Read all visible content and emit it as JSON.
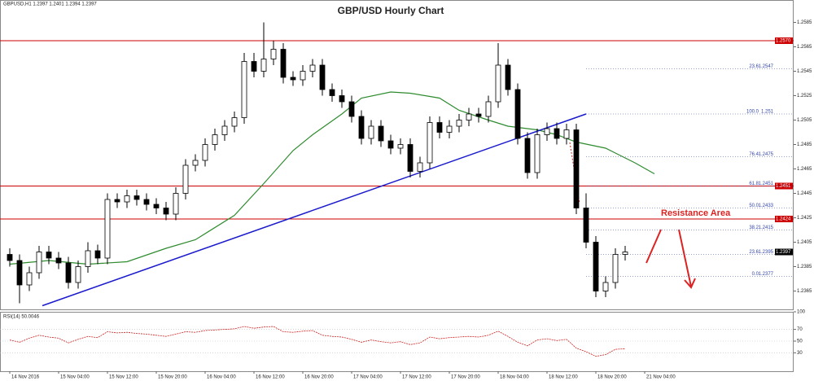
{
  "chart_data": {
    "type": "candlestick",
    "title": "GBP/USD Hourly Chart",
    "header_info": "GBPUSD,H1 1.2397 1.2401 1.2394 1.2397",
    "annotation": "Resistance Area",
    "xlim": [
      -1,
      80
    ],
    "ylim": [
      1.235,
      1.26
    ],
    "yticks": [
      1.2365,
      1.2385,
      1.2405,
      1.2425,
      1.2445,
      1.2465,
      1.2485,
      1.2505,
      1.2525,
      1.2545,
      1.2565,
      1.2585
    ],
    "xticks": [
      {
        "value": 0,
        "label": "14 Nov 2016"
      },
      {
        "value": 5,
        "label": "15 Nov 04:00"
      },
      {
        "value": 10,
        "label": "15 Nov 12:00"
      },
      {
        "value": 15,
        "label": "15 Nov 20:00"
      },
      {
        "value": 20,
        "label": "16 Nov 04:00"
      },
      {
        "value": 25,
        "label": "16 Nov 12:00"
      },
      {
        "value": 30,
        "label": "16 Nov 20:00"
      },
      {
        "value": 35,
        "label": "17 Nov 04:00"
      },
      {
        "value": 40,
        "label": "17 Nov 12:00"
      },
      {
        "value": 45,
        "label": "17 Nov 20:00"
      },
      {
        "value": 50,
        "label": "18 Nov 04:00"
      },
      {
        "value": 55,
        "label": "18 Nov 12:00"
      },
      {
        "value": 60,
        "label": "18 Nov 20:00"
      },
      {
        "value": 65,
        "label": "21 Nov 04:00"
      }
    ],
    "up_color": "#ffffff",
    "down_color": "#000000",
    "open": [
      1.2395,
      1.239,
      1.237,
      1.238,
      1.2397,
      1.2392,
      1.2388,
      1.2372,
      1.2385,
      1.2398,
      1.2392,
      1.244,
      1.2438,
      1.2443,
      1.244,
      1.2436,
      1.2433,
      1.2428,
      1.2445,
      1.2468,
      1.2472,
      1.2485,
      1.2493,
      1.25,
      1.2507,
      1.2553,
      1.2545,
      1.2555,
      1.2563,
      1.254,
      1.2538,
      1.2545,
      1.255,
      1.253,
      1.2525,
      1.252,
      1.2508,
      1.249,
      1.25,
      1.2488,
      1.2482,
      1.2485,
      1.2463,
      1.247,
      1.2503,
      1.2495,
      1.25,
      1.2505,
      1.251,
      1.2508,
      1.252,
      1.255,
      1.253,
      1.249,
      1.2462,
      1.2493,
      1.2498,
      1.249,
      1.2497,
      1.2433,
      1.2405,
      1.2365,
      1.2372,
      1.2395
    ],
    "high": [
      1.24,
      1.2395,
      1.2385,
      1.2402,
      1.2402,
      1.2397,
      1.2393,
      1.239,
      1.2405,
      1.2403,
      1.2445,
      1.2445,
      1.2448,
      1.2448,
      1.2445,
      1.2441,
      1.2438,
      1.245,
      1.2473,
      1.2477,
      1.249,
      1.2498,
      1.2505,
      1.2512,
      1.256,
      1.256,
      1.2585,
      1.257,
      1.2568,
      1.2545,
      1.255,
      1.2555,
      1.2555,
      1.2535,
      1.253,
      1.2525,
      1.2513,
      1.2505,
      1.2505,
      1.2493,
      1.249,
      1.249,
      1.2475,
      1.2508,
      1.2508,
      1.2505,
      1.251,
      1.2515,
      1.2515,
      1.2525,
      1.2568,
      1.2555,
      1.2535,
      1.2495,
      1.2498,
      1.2503,
      1.2503,
      1.2502,
      1.2502,
      1.2445,
      1.241,
      1.2377,
      1.24,
      1.2402
    ],
    "low": [
      1.2385,
      1.2355,
      1.2365,
      1.2375,
      1.2387,
      1.2383,
      1.2367,
      1.2367,
      1.238,
      1.2387,
      1.2387,
      1.2433,
      1.2433,
      1.2435,
      1.2431,
      1.2428,
      1.2423,
      1.2423,
      1.244,
      1.2463,
      1.2467,
      1.248,
      1.2488,
      1.2495,
      1.2502,
      1.254,
      1.254,
      1.255,
      1.2535,
      1.2533,
      1.2533,
      1.254,
      1.2525,
      1.252,
      1.2515,
      1.2503,
      1.2485,
      1.2485,
      1.2483,
      1.2477,
      1.2477,
      1.2458,
      1.2458,
      1.2465,
      1.249,
      1.249,
      1.2495,
      1.25,
      1.2503,
      1.2503,
      1.2515,
      1.2525,
      1.2485,
      1.2457,
      1.2457,
      1.2488,
      1.2485,
      1.2485,
      1.2428,
      1.24,
      1.236,
      1.236,
      1.2367,
      1.239
    ],
    "close": [
      1.239,
      1.237,
      1.238,
      1.2397,
      1.2392,
      1.2388,
      1.2372,
      1.2385,
      1.2398,
      1.2392,
      1.244,
      1.2438,
      1.2443,
      1.244,
      1.2436,
      1.2433,
      1.2428,
      1.2445,
      1.2468,
      1.2472,
      1.2485,
      1.2493,
      1.25,
      1.2507,
      1.2553,
      1.2545,
      1.2555,
      1.2563,
      1.254,
      1.2538,
      1.2545,
      1.255,
      1.253,
      1.2525,
      1.252,
      1.2508,
      1.249,
      1.25,
      1.2488,
      1.2482,
      1.2485,
      1.2463,
      1.247,
      1.2503,
      1.2495,
      1.25,
      1.2505,
      1.251,
      1.2508,
      1.252,
      1.255,
      1.253,
      1.249,
      1.2462,
      1.2493,
      1.2498,
      1.249,
      1.2497,
      1.2433,
      1.2405,
      1.2365,
      1.2372,
      1.2395,
      1.2397
    ],
    "last_price": 1.2397,
    "ma": {
      "color": "#2e8b2e",
      "x": [
        0,
        4,
        8,
        12,
        16,
        19,
        23,
        26,
        29,
        31,
        34,
        36,
        39,
        41,
        44,
        46,
        49,
        51,
        54,
        56,
        58,
        61,
        64,
        66
      ],
      "values": [
        1.2387,
        1.239,
        1.2387,
        1.2389,
        1.24,
        1.2407,
        1.2427,
        1.2453,
        1.248,
        1.2493,
        1.251,
        1.2523,
        1.2528,
        1.2527,
        1.2523,
        1.2513,
        1.2505,
        1.25,
        1.2497,
        1.2493,
        1.2487,
        1.2482,
        1.247,
        1.2461
      ]
    },
    "trendline": {
      "color": "#1a1acc",
      "x": [
        3.33,
        59
      ],
      "values": [
        1.2353,
        1.251
      ]
    },
    "hline_color": "#cc0000",
    "hlines": [
      {
        "value": 1.257,
        "label": "1.2570"
      },
      {
        "value": 1.2451,
        "label": "1.2451"
      },
      {
        "value": 1.2424,
        "label": "1.2424"
      }
    ],
    "fib_levels": [
      {
        "level": "23.6",
        "price": 1.2547
      },
      {
        "level": "100.0",
        "price": 1.251
      },
      {
        "level": "76.4",
        "price": 1.2475
      },
      {
        "level": "61.8",
        "price": 1.2451
      },
      {
        "level": "50.0",
        "price": 1.2433
      },
      {
        "level": "38.2",
        "price": 1.2415
      },
      {
        "level": "23.6",
        "price": 1.2395
      },
      {
        "level": "0.0",
        "price": 1.2377
      }
    ],
    "rsi": {
      "label": "RSI(14) 50.0046",
      "color": "#cc2222",
      "ylim": [
        0,
        100
      ],
      "yticks": [
        30,
        50,
        70,
        100
      ],
      "values": [
        52,
        48,
        55,
        60,
        57,
        55,
        47,
        53,
        58,
        56,
        66,
        64,
        65,
        63,
        62,
        60,
        58,
        62,
        66,
        65,
        68,
        69,
        70,
        71,
        75,
        72,
        74,
        75,
        66,
        65,
        67,
        68,
        60,
        58,
        57,
        53,
        48,
        52,
        49,
        47,
        49,
        44,
        47,
        57,
        54,
        56,
        57,
        58,
        57,
        60,
        67,
        58,
        48,
        42,
        52,
        54,
        51,
        53,
        38,
        32,
        24,
        27,
        36,
        37
      ]
    }
  }
}
